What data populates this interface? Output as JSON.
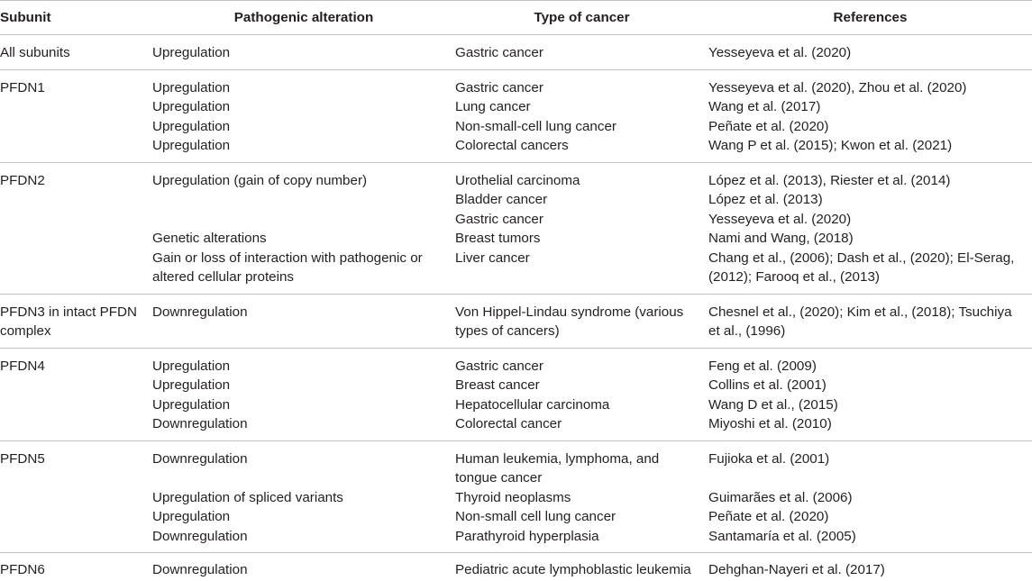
{
  "table": {
    "headers": [
      "Subunit",
      "Pathogenic alteration",
      "Type of cancer",
      "References"
    ],
    "groups": [
      {
        "subunit": [
          "All subunits"
        ],
        "rows": [
          {
            "alteration": [
              "Upregulation"
            ],
            "cancer": [
              "Gastric cancer"
            ],
            "references": [
              "Yesseyeva et al. (2020)"
            ]
          }
        ]
      },
      {
        "subunit": [
          "PFDN1"
        ],
        "rows": [
          {
            "alteration": [
              "Upregulation"
            ],
            "cancer": [
              "Gastric cancer"
            ],
            "references": [
              "Yesseyeva et al. (2020), Zhou et al. (2020)"
            ]
          },
          {
            "alteration": [
              "Upregulation"
            ],
            "cancer": [
              "Lung cancer"
            ],
            "references": [
              "Wang et al. (2017)"
            ]
          },
          {
            "alteration": [
              "Upregulation"
            ],
            "cancer": [
              "Non-small-cell lung cancer"
            ],
            "references": [
              "Peñate et al. (2020)"
            ]
          },
          {
            "alteration": [
              "Upregulation"
            ],
            "cancer": [
              "Colorectal cancers"
            ],
            "references": [
              "Wang P et al. (2015); Kwon et al. (2021)"
            ]
          }
        ]
      },
      {
        "subunit": [
          "PFDN2"
        ],
        "rows": [
          {
            "alteration": [
              "Upregulation (gain of copy number)"
            ],
            "cancer": [
              "Urothelial carcinoma"
            ],
            "references": [
              "López et al. (2013), Riester et al. (2014)"
            ]
          },
          {
            "alteration": [],
            "cancer": [
              "Bladder cancer"
            ],
            "references": [
              "López et al. (2013)"
            ]
          },
          {
            "alteration": [],
            "cancer": [
              "Gastric cancer"
            ],
            "references": [
              "Yesseyeva et al. (2020)"
            ]
          },
          {
            "alteration": [
              "Genetic alterations"
            ],
            "cancer": [
              "Breast tumors"
            ],
            "references": [
              "Nami and Wang, (2018)"
            ]
          },
          {
            "alteration": [
              "Gain or loss of interaction with pathogenic or",
              "altered cellular proteins"
            ],
            "cancer": [
              "Liver cancer"
            ],
            "references": [
              "Chang et al., (2006); Dash et al., (2020); El-Serag,",
              "(2012); Farooq et al., (2013)"
            ]
          }
        ]
      },
      {
        "subunit": [
          "PFDN3 in intact PFDN",
          "complex"
        ],
        "rows": [
          {
            "alteration": [
              "Downregulation"
            ],
            "cancer": [
              "Von Hippel-Lindau syndrome (various",
              "types of cancers)"
            ],
            "references": [
              "Chesnel et al., (2020); Kim et al., (2018); Tsuchiya",
              "et al., (1996)"
            ]
          }
        ]
      },
      {
        "subunit": [
          "PFDN4"
        ],
        "rows": [
          {
            "alteration": [
              "Upregulation"
            ],
            "cancer": [
              "Gastric cancer"
            ],
            "references": [
              "Feng et al. (2009)"
            ]
          },
          {
            "alteration": [
              "Upregulation"
            ],
            "cancer": [
              "Breast cancer"
            ],
            "references": [
              "Collins et al. (2001)"
            ]
          },
          {
            "alteration": [
              "Upregulation"
            ],
            "cancer": [
              "Hepatocellular carcinoma"
            ],
            "references": [
              "Wang D et al., (2015)"
            ]
          },
          {
            "alteration": [
              "Downregulation"
            ],
            "cancer": [
              "Colorectal cancer"
            ],
            "references": [
              "Miyoshi et al. (2010)"
            ]
          }
        ]
      },
      {
        "subunit": [
          "PFDN5"
        ],
        "rows": [
          {
            "alteration": [
              "Downregulation"
            ],
            "cancer": [
              "Human leukemia, lymphoma, and",
              "tongue cancer"
            ],
            "references": [
              "Fujioka et al. (2001)"
            ]
          },
          {
            "alteration": [
              "Upregulation of spliced variants"
            ],
            "cancer": [
              "Thyroid neoplasms"
            ],
            "references": [
              "Guimarães et al. (2006)"
            ]
          },
          {
            "alteration": [
              "Upregulation"
            ],
            "cancer": [
              "Non-small cell lung cancer"
            ],
            "references": [
              "Peñate et al. (2020)"
            ]
          },
          {
            "alteration": [
              "Downregulation"
            ],
            "cancer": [
              "Parathyroid hyperplasia"
            ],
            "references": [
              "Santamaría et al. (2005)"
            ]
          }
        ]
      },
      {
        "subunit": [
          "PFDN6"
        ],
        "rows": [
          {
            "alteration": [
              "Downregulation"
            ],
            "cancer": [
              "Pediatric acute lymphoblastic leukemia"
            ],
            "references": [
              "Dehghan-Nayeri et al. (2017)"
            ]
          }
        ]
      }
    ]
  }
}
